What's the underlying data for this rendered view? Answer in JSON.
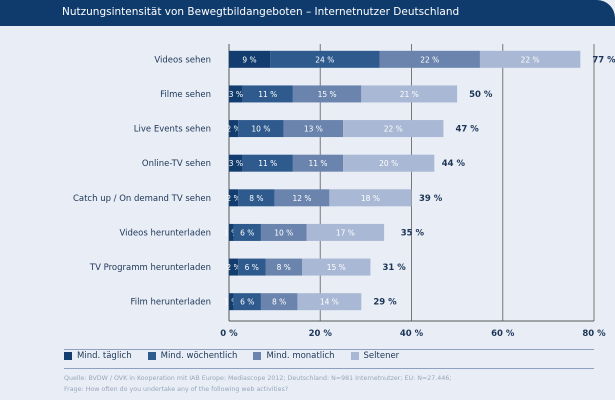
{
  "title": "Nutzungsintensität von Bewegtbildangeboten – Internetnutzer Deutschland",
  "chart_data": {
    "type": "bar",
    "orientation": "horizontal",
    "stacked": true,
    "title": "Nutzungsintensität von Bewegtbildangeboten – Internetnutzer Deutschland",
    "categories": [
      "Videos sehen",
      "Filme sehen",
      "Live Events sehen",
      "Online-TV sehen",
      "Catch up / On demand TV sehen",
      "Videos herunterladen",
      "TV Programm herunterladen",
      "Film herunterladen"
    ],
    "series": [
      {
        "name": "Mind. täglich",
        "color": "#123d6e",
        "values": [
          9,
          3,
          2,
          3,
          2,
          1,
          2,
          1
        ]
      },
      {
        "name": "Mind. wöchentlich",
        "color": "#2e5a8e",
        "values": [
          24,
          11,
          10,
          11,
          8,
          6,
          6,
          6
        ]
      },
      {
        "name": "Mind. monatlich",
        "color": "#6a84ad",
        "values": [
          22,
          15,
          13,
          11,
          12,
          10,
          8,
          8
        ]
      },
      {
        "name": "Seltener",
        "color": "#a9b8d4",
        "values": [
          22,
          21,
          22,
          20,
          18,
          17,
          15,
          14
        ]
      }
    ],
    "totals": [
      77,
      50,
      47,
      44,
      39,
      35,
      31,
      29
    ],
    "value_suffix": " %",
    "xlim": [
      0,
      80
    ],
    "xticks": [
      "0 %",
      "20 %",
      "40 %",
      "60 %",
      "80 %"
    ],
    "grid": true,
    "legend": "bottom-left"
  },
  "source": "Quelle: BVDW / OVK in Kooperation mit IAB Europe: Mediascope 2012; Deutschland: N=981 Internetnutzer; EU: N=27.446;",
  "question": "Frage: How often do you undertake any of the following web activities?"
}
